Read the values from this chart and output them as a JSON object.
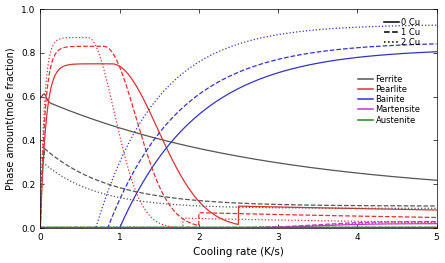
{
  "title": "",
  "xlabel": "Cooling rate (K/s)",
  "ylabel": "Phase amount(mole fraction)",
  "xlim": [
    0,
    5
  ],
  "ylim": [
    0.0,
    1.0
  ],
  "xticks": [
    0,
    1,
    2,
    3,
    4,
    5
  ],
  "yticks": [
    0.0,
    0.2,
    0.4,
    0.6,
    0.8,
    1.0
  ],
  "colors": {
    "Ferrite": "#555555",
    "Pearlite": "#dd3333",
    "Bainite": "#3333cc",
    "Martensite": "#cc33cc",
    "Austenite": "#228822"
  },
  "cu_labels": [
    "0 Cu",
    "1 Cu",
    "2 Cu"
  ],
  "phase_labels": [
    "Ferrite",
    "Pearlite",
    "Bainite",
    "Martensite",
    "Austenite"
  ]
}
